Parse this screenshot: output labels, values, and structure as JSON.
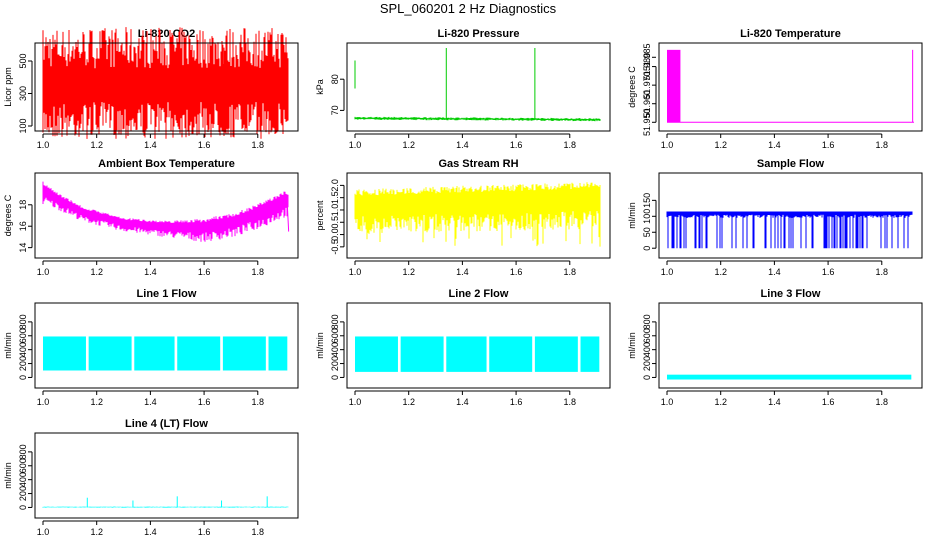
{
  "figure_title": "SPL_060201  2 Hz Diagnostics",
  "colors": {
    "red": "#ff0000",
    "green": "#00cc00",
    "magenta": "#ff00ff",
    "yellow": "#ffff00",
    "blue": "#0000ff",
    "cyan": "#00ffff",
    "axis": "#000000"
  },
  "chart_data": [
    {
      "type": "line",
      "title": "Li-820 CO2",
      "ylabel": "Licor ppm",
      "color": "red",
      "xlim": [
        1.0,
        1.92
      ],
      "xticks": [
        "1.0",
        "1.2",
        "1.4",
        "1.6",
        "1.8"
      ],
      "ylim": [
        100,
        580
      ],
      "yticks": [
        "100",
        "300",
        "500"
      ],
      "style": "band",
      "base": [
        [
          1.0,
          345
        ],
        [
          1.92,
          345
        ]
      ],
      "band_low": 325,
      "band_high": 365,
      "spikes": [
        [
          1.0,
          60,
          470
        ],
        [
          1.09,
          320,
          420
        ],
        [
          1.15,
          320,
          420
        ],
        [
          1.22,
          320,
          420
        ],
        [
          1.28,
          320,
          410
        ],
        [
          1.34,
          120,
          350
        ],
        [
          1.35,
          320,
          420
        ],
        [
          1.42,
          320,
          420
        ],
        [
          1.48,
          320,
          420
        ],
        [
          1.55,
          320,
          420
        ],
        [
          1.62,
          300,
          430
        ],
        [
          1.67,
          180,
          600
        ],
        [
          1.72,
          320,
          420
        ],
        [
          1.79,
          320,
          420
        ],
        [
          1.85,
          320,
          420
        ]
      ]
    },
    {
      "type": "line",
      "title": "Li-820 Pressure",
      "ylabel": "kPa",
      "color": "green",
      "xlim": [
        1.0,
        1.92
      ],
      "xticks": [
        "1.0",
        "1.2",
        "1.4",
        "1.6",
        "1.8"
      ],
      "ylim": [
        65,
        90
      ],
      "yticks": [
        "70",
        "80"
      ],
      "style": "band",
      "base": [
        [
          1.0,
          67.5
        ],
        [
          1.92,
          67.0
        ]
      ],
      "band_low": 0.5,
      "band_high": 0.5,
      "spikes": [
        [
          1.0,
          77,
          86
        ],
        [
          1.34,
          67,
          90
        ],
        [
          1.67,
          67,
          90
        ]
      ]
    },
    {
      "type": "line",
      "title": "Li-820 Temperature",
      "ylabel": "degrees C",
      "color": "magenta",
      "xlim": [
        1.0,
        1.92
      ],
      "xticks": [
        "1.0",
        "1.2",
        "1.4",
        "1.6",
        "1.8"
      ],
      "ylim": [
        51.948,
        51.99
      ],
      "yticks": [
        "51.950",
        "51.960",
        "51.970",
        "51.980"
      ],
      "extra_ytick": [
        "51.985",
        51.985
      ],
      "style": "block",
      "base": [
        [
          1.0,
          51.95
        ],
        [
          1.92,
          51.95
        ]
      ],
      "blocks": [
        [
          1.0,
          1.05,
          51.95,
          51.989
        ]
      ],
      "spikes": [
        [
          1.915,
          51.95,
          51.989
        ]
      ]
    },
    {
      "type": "line",
      "title": "Ambient Box Temperature",
      "ylabel": "degrees C",
      "color": "magenta",
      "xlim": [
        1.0,
        1.92
      ],
      "xticks": [
        "1.0",
        "1.2",
        "1.4",
        "1.6",
        "1.8"
      ],
      "ylim": [
        13.5,
        20.5
      ],
      "yticks": [
        "14",
        "16",
        "18"
      ],
      "style": "envelope",
      "upper": [
        [
          1.0,
          20.2
        ],
        [
          1.05,
          19.2
        ],
        [
          1.15,
          17.8
        ],
        [
          1.3,
          16.8
        ],
        [
          1.45,
          16.5
        ],
        [
          1.6,
          16.7
        ],
        [
          1.72,
          17.3
        ],
        [
          1.82,
          18.3
        ],
        [
          1.9,
          19.3
        ]
      ],
      "lower": [
        [
          1.0,
          18.0
        ],
        [
          1.05,
          17.6
        ],
        [
          1.15,
          16.4
        ],
        [
          1.3,
          15.5
        ],
        [
          1.45,
          15.0
        ],
        [
          1.6,
          14.5
        ],
        [
          1.72,
          15.0
        ],
        [
          1.82,
          15.9
        ],
        [
          1.9,
          16.8
        ]
      ],
      "tail": [
        [
          1.91,
          18.0
        ],
        [
          1.915,
          15.5
        ]
      ]
    },
    {
      "type": "line",
      "title": "Gas Stream RH",
      "ylabel": "percent",
      "color": "yellow",
      "xlim": [
        1.0,
        1.92
      ],
      "xticks": [
        "1.0",
        "1.2",
        "1.4",
        "1.6",
        "1.8"
      ],
      "ylim": [
        -0.75,
        2.3
      ],
      "yticks": [
        "-0.5",
        "0.0",
        "0.5",
        "1.0",
        "1.5",
        "2.0"
      ],
      "style": "envelope",
      "upper": [
        [
          1.0,
          1.85
        ],
        [
          1.3,
          1.95
        ],
        [
          1.6,
          2.05
        ],
        [
          1.92,
          2.15
        ]
      ],
      "lower": [
        [
          1.0,
          0.0
        ],
        [
          1.3,
          0.1
        ],
        [
          1.6,
          0.15
        ],
        [
          1.92,
          0.2
        ]
      ],
      "dips": -0.5
    },
    {
      "type": "line",
      "title": "Sample Flow",
      "ylabel": "ml/min",
      "color": "blue",
      "xlim": [
        1.0,
        1.92
      ],
      "xticks": [
        "1.0",
        "1.2",
        "1.4",
        "1.6",
        "1.8"
      ],
      "ylim": [
        -15,
        220
      ],
      "yticks": [
        "0",
        "50",
        "100",
        "150"
      ],
      "style": "square",
      "low": 0,
      "high": 115,
      "band_low": 95
    },
    {
      "type": "line",
      "title": "Line 1 Flow",
      "ylabel": "ml/min",
      "color": "cyan",
      "xlim": [
        1.0,
        1.92
      ],
      "xticks": [
        "1.0",
        "1.2",
        "1.4",
        "1.6",
        "1.8"
      ],
      "ylim": [
        -80,
        1000
      ],
      "yticks": [
        "0",
        "200",
        "400",
        "600",
        "800"
      ],
      "style": "block",
      "blocks": [
        [
          1.0,
          1.16,
          100,
          590
        ],
        [
          1.17,
          1.33,
          100,
          590
        ],
        [
          1.34,
          1.49,
          100,
          590
        ],
        [
          1.5,
          1.66,
          100,
          590
        ],
        [
          1.67,
          1.83,
          100,
          590
        ],
        [
          1.84,
          1.91,
          100,
          590
        ]
      ]
    },
    {
      "type": "line",
      "title": "Line 2 Flow",
      "ylabel": "ml/min",
      "color": "cyan",
      "xlim": [
        1.0,
        1.92
      ],
      "xticks": [
        "1.0",
        "1.2",
        "1.4",
        "1.6",
        "1.8"
      ],
      "ylim": [
        -80,
        1000
      ],
      "yticks": [
        "0",
        "200",
        "400",
        "600",
        "800"
      ],
      "style": "block",
      "blocks": [
        [
          1.0,
          1.16,
          80,
          590
        ],
        [
          1.17,
          1.33,
          80,
          590
        ],
        [
          1.34,
          1.49,
          80,
          590
        ],
        [
          1.5,
          1.66,
          80,
          590
        ],
        [
          1.67,
          1.83,
          80,
          590
        ],
        [
          1.84,
          1.91,
          80,
          590
        ]
      ]
    },
    {
      "type": "line",
      "title": "Line 3 Flow",
      "ylabel": "ml/min",
      "color": "cyan",
      "xlim": [
        1.0,
        1.92
      ],
      "xticks": [
        "1.0",
        "1.2",
        "1.4",
        "1.6",
        "1.8"
      ],
      "ylim": [
        -80,
        1000
      ],
      "yticks": [
        "0",
        "200",
        "400",
        "600",
        "800"
      ],
      "style": "block",
      "blocks": [
        [
          1.0,
          1.91,
          -30,
          40
        ]
      ]
    },
    {
      "type": "line",
      "title": "Line 4 (LT) Flow",
      "ylabel": "ml/min",
      "color": "cyan",
      "xlim": [
        1.0,
        1.92
      ],
      "xticks": [
        "1.0",
        "1.2",
        "1.4",
        "1.6",
        "1.8"
      ],
      "ylim": [
        -80,
        1000
      ],
      "yticks": [
        "0",
        "200",
        "400",
        "600",
        "800"
      ],
      "style": "band",
      "base": [
        [
          1.0,
          5
        ],
        [
          1.91,
          5
        ]
      ],
      "band_low": 8,
      "band_high": 8,
      "spikes": [
        [
          1.165,
          0,
          140
        ],
        [
          1.335,
          0,
          100
        ],
        [
          1.5,
          0,
          160
        ],
        [
          1.665,
          0,
          100
        ],
        [
          1.835,
          0,
          160
        ]
      ]
    }
  ]
}
